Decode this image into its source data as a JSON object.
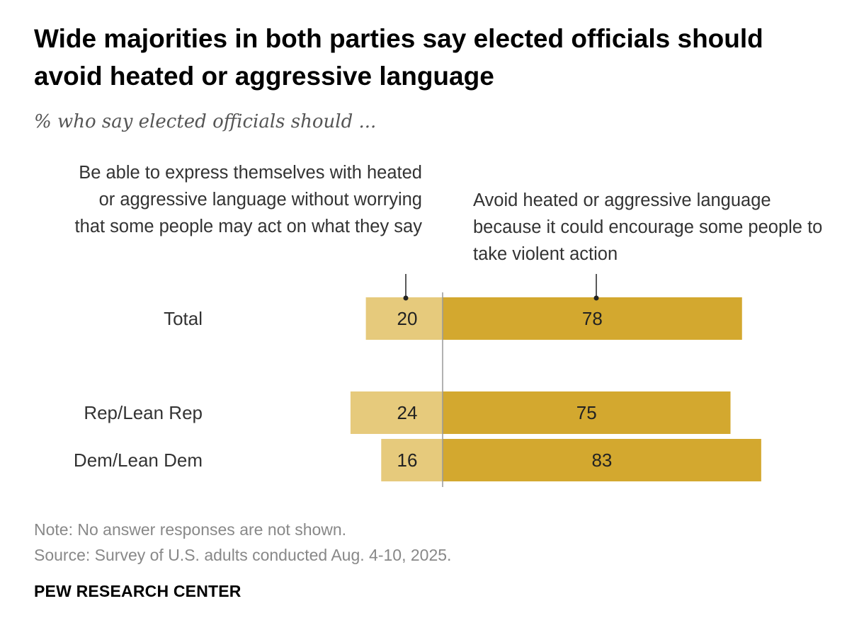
{
  "title": "Wide majorities in both parties say elected officials should avoid heated or aggressive language",
  "subtitle": "% who say elected officials should ...",
  "note": "Note: No answer responses are not shown.",
  "source": "Source: Survey of U.S. adults conducted Aug. 4-10, 2025.",
  "logo_text": "PEW RESEARCH CENTER",
  "colors": {
    "express": "#e6ca7c",
    "avoid": "#d3a82f",
    "axis": "#999999",
    "text": "#222222"
  },
  "chart_data": {
    "type": "bar",
    "orientation": "horizontal",
    "layout": "diverging",
    "categories": [
      "Total",
      "Rep/Lean Rep",
      "Dem/Lean Dem"
    ],
    "series": [
      {
        "name": "Be able to express themselves with heated or aggressive language without worrying that some people may act on what they say",
        "values": [
          20,
          24,
          16
        ],
        "color": "#e6ca7c"
      },
      {
        "name": "Avoid heated or aggressive language because it could encourage some people to take violent action",
        "values": [
          78,
          75,
          83
        ],
        "color": "#d3a82f"
      }
    ],
    "unit": "%"
  }
}
